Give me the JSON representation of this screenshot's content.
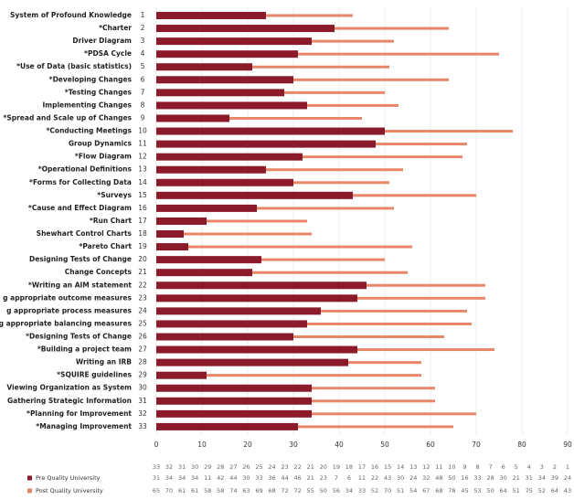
{
  "chart_data": {
    "type": "bar",
    "orientation": "horizontal",
    "categories": [
      "System of Profound Knowledge",
      "*Charter",
      "Driver Diagram",
      "*PDSA Cycle",
      "*Use of Data (basic statistics)",
      "*Developing Changes",
      "*Testing Changes",
      "Implementing Changes",
      "*Spread and Scale up of Changes",
      "*Conducting Meetings",
      "Group Dynamics",
      "*Flow Diagram",
      "*Operational Definitions",
      "*Forms for Collecting Data",
      "*Surveys",
      "*Cause and Effect Diagram",
      "*Run Chart",
      "Shewhart Control Charts",
      "*Pareto Chart",
      "Designing Tests of Change",
      "Change Concepts",
      "*Writing an AIM statement",
      "g appropriate outcome measures",
      "g appropriate process measures",
      "g appropriate balancing measures",
      "*Designing Tests of Change",
      "*Building a project team",
      "Writing an IRB",
      "*SQUIRE guidelines",
      "Viewing Organization as System",
      "Gathering Strategic Information",
      "*Planning for Improvement",
      "*Managing Improvement"
    ],
    "category_numbers": [
      1,
      2,
      3,
      4,
      5,
      6,
      7,
      8,
      9,
      10,
      11,
      12,
      13,
      14,
      15,
      16,
      17,
      18,
      19,
      20,
      21,
      22,
      23,
      24,
      25,
      26,
      27,
      28,
      29,
      30,
      31,
      32,
      33
    ],
    "series": [
      {
        "name": "Pre Quality University",
        "color": "#8b1a2b",
        "values": [
          24,
          39,
          34,
          31,
          21,
          30,
          28,
          33,
          16,
          50,
          48,
          32,
          24,
          30,
          43,
          22,
          11,
          6,
          7,
          23,
          21,
          46,
          44,
          36,
          33,
          30,
          44,
          42,
          11,
          34,
          34,
          34,
          31
        ]
      },
      {
        "name": "Post Quality University",
        "color": "#e8866a",
        "values": [
          43,
          64,
          52,
          75,
          51,
          64,
          50,
          53,
          45,
          78,
          68,
          67,
          54,
          51,
          70,
          52,
          33,
          34,
          56,
          50,
          55,
          72,
          72,
          68,
          69,
          63,
          74,
          58,
          58,
          61,
          61,
          70,
          65
        ]
      }
    ],
    "xlim": [
      0,
      90
    ],
    "xticks": [
      0,
      10,
      20,
      30,
      40,
      50,
      60,
      70,
      80,
      90
    ],
    "grid": true
  }
}
